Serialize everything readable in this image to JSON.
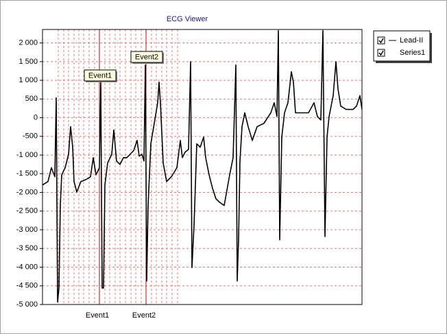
{
  "chart_data": {
    "type": "line",
    "title": "ECG Viewer",
    "x": [
      0,
      8,
      13,
      18,
      20,
      22,
      24,
      26,
      28,
      33,
      38,
      41,
      44,
      46,
      50,
      56,
      63,
      70,
      74,
      78,
      83,
      85,
      87,
      89,
      91,
      95,
      101,
      104,
      108,
      113,
      118,
      123,
      133,
      138,
      141,
      145,
      148,
      150,
      152,
      154,
      158,
      163,
      168,
      170,
      172,
      176,
      181,
      188,
      196,
      201,
      204,
      208,
      213,
      216,
      218,
      221,
      225,
      230,
      235,
      238,
      243,
      248,
      253,
      258,
      265,
      273,
      278,
      282,
      284,
      286,
      288,
      291,
      295,
      300,
      306,
      313,
      323,
      333,
      338,
      342,
      344,
      346,
      349,
      353,
      358,
      363,
      366,
      369,
      378,
      388,
      396,
      401,
      406,
      409,
      412,
      415,
      418,
      424,
      428,
      431,
      435,
      443,
      453,
      458,
      463,
      466
    ],
    "series": [
      {
        "name": "Lead-II",
        "color": "#000000",
        "values": [
          -1800,
          -1710,
          -1340,
          -1580,
          530,
          -4930,
          -4560,
          -2350,
          -1530,
          -1340,
          -980,
          -240,
          -790,
          -1710,
          -1990,
          -1710,
          -1660,
          -1580,
          -1070,
          -1530,
          -1340,
          950,
          -4560,
          -4560,
          -1800,
          -1210,
          -980,
          -330,
          -1160,
          -1250,
          -1070,
          -1070,
          -880,
          -610,
          -1030,
          -980,
          -1160,
          1410,
          -4370,
          -2350,
          -700,
          -150,
          400,
          950,
          400,
          -1210,
          -1710,
          -1580,
          -1340,
          -610,
          -1070,
          -920,
          -850,
          1500,
          -4010,
          -2900,
          -700,
          -790,
          -520,
          -1070,
          -1530,
          -1890,
          -2170,
          -2260,
          -2350,
          -1530,
          -1070,
          1410,
          -4370,
          -3270,
          -1160,
          -240,
          130,
          -240,
          -610,
          -240,
          -150,
          130,
          400,
          30,
          2330,
          -3270,
          -520,
          130,
          400,
          1230,
          950,
          130,
          130,
          130,
          400,
          30,
          -60,
          2330,
          -3180,
          -520,
          30,
          590,
          1500,
          770,
          310,
          220,
          220,
          310,
          590,
          220
        ]
      }
    ],
    "xlim": [
      0,
      466
    ],
    "xticks": [
      23,
      31,
      38,
      46,
      53,
      60,
      68,
      76,
      91,
      98,
      106,
      113,
      121,
      129,
      136,
      144,
      159,
      166,
      174,
      181,
      189,
      197
    ],
    "ylim": [
      -5000,
      2360
    ],
    "yticks": [
      {
        "value": 2000,
        "label": "2 000"
      },
      {
        "value": 1500,
        "label": "1 500"
      },
      {
        "value": 1000,
        "label": "1 000"
      },
      500,
      0,
      -500,
      {
        "value": -1000,
        "label": "-1 000"
      },
      {
        "value": -1500,
        "label": "-1 500"
      },
      {
        "value": -2000,
        "label": "-2 000"
      },
      {
        "value": -2500,
        "label": "-2 500"
      },
      {
        "value": -3000,
        "label": "-3 000"
      },
      {
        "value": -3500,
        "label": "-3 500"
      },
      {
        "value": -4000,
        "label": "-4 000"
      },
      {
        "value": -4500,
        "label": "-4 500"
      },
      {
        "value": -5000,
        "label": "-5 000"
      }
    ],
    "grid": true,
    "events": [
      {
        "label": "Event1",
        "x": 83,
        "color": "#c00000"
      },
      {
        "label": "Event2",
        "x": 151,
        "color": "#c00000"
      }
    ],
    "legend": {
      "position": "right",
      "extra_entries": [
        "Series1"
      ]
    }
  }
}
